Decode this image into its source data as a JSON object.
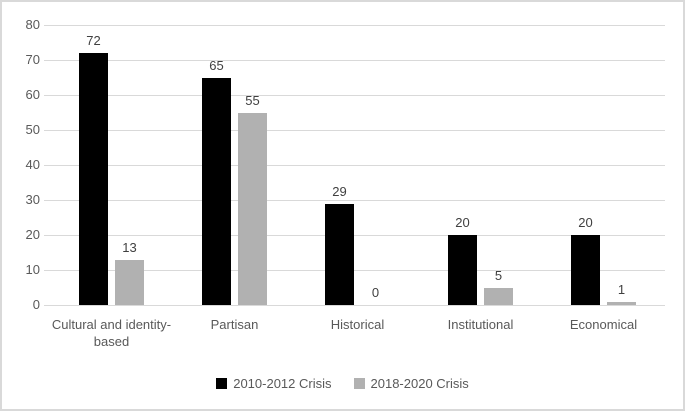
{
  "chart_data": {
    "type": "bar",
    "title": "",
    "xlabel": "",
    "ylabel": "",
    "categories": [
      "Cultural and identity-based",
      "Partisan",
      "Historical",
      "Institutional",
      "Economical"
    ],
    "series": [
      {
        "name": "2010-2012 Crisis",
        "color": "#000000",
        "values": [
          72,
          65,
          29,
          20,
          20
        ]
      },
      {
        "name": "2018-2020 Crisis",
        "color": "#b1b1b1",
        "values": [
          13,
          55,
          0,
          5,
          1
        ]
      }
    ],
    "ylim": [
      0,
      80
    ],
    "yticks": [
      0,
      10,
      20,
      30,
      40,
      50,
      60,
      70,
      80
    ],
    "grid": true,
    "value_labels": true,
    "legend_position": "bottom"
  },
  "style": {
    "background": "#ffffff",
    "border_color": "#d9d9d9",
    "gridline_color": "#d9d9d9",
    "axis_text_color": "#595959",
    "value_label_color": "#404040",
    "legend_text_color": "#595959"
  }
}
